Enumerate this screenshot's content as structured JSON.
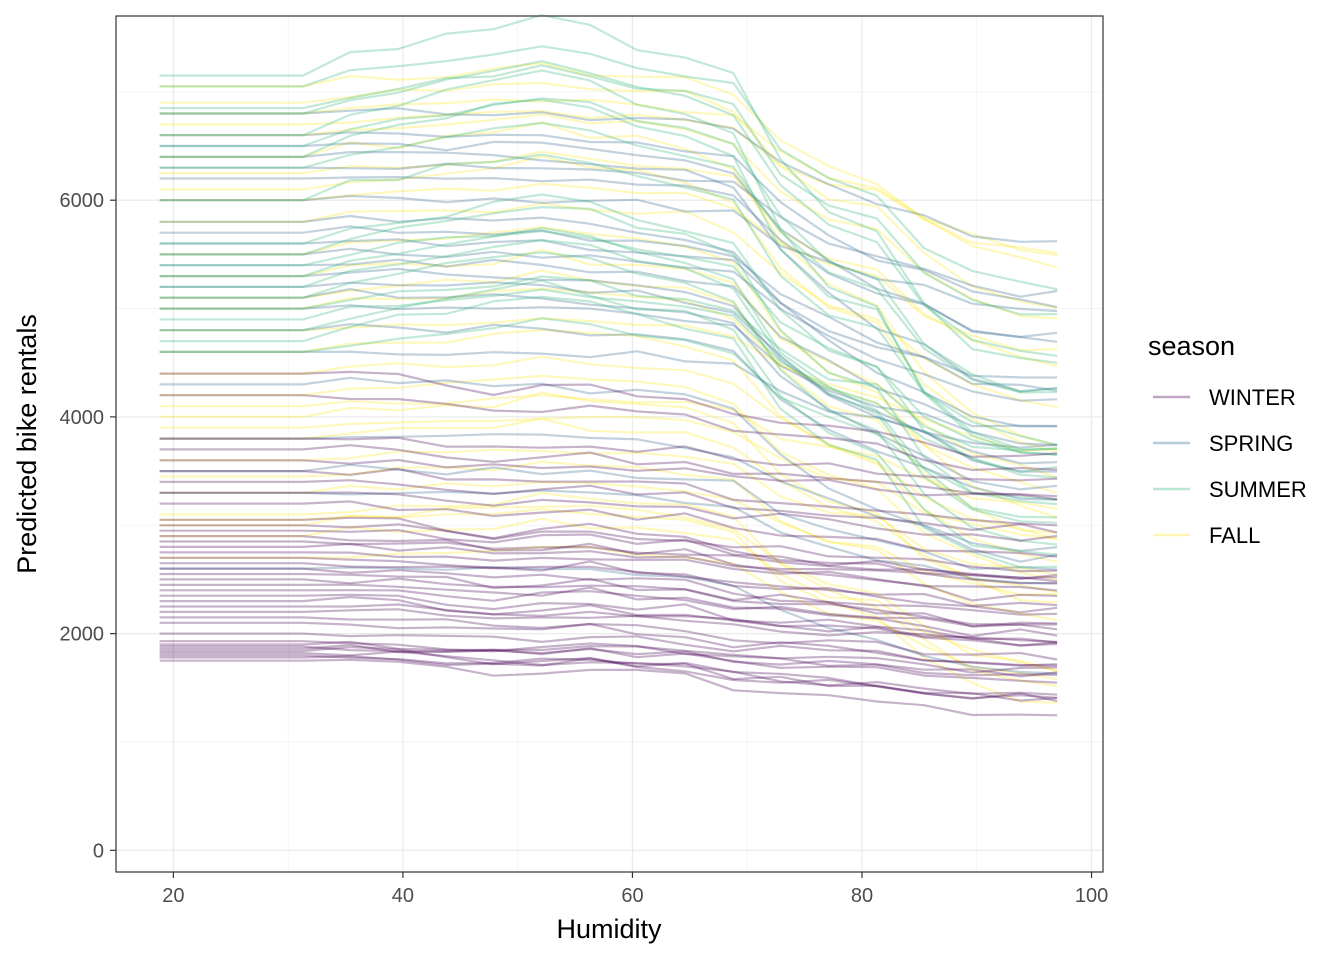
{
  "chart_data": {
    "type": "line",
    "xlabel": "Humidity",
    "ylabel": "Predicted bike rentals",
    "xlim": [
      15,
      101
    ],
    "ylim": [
      -200,
      7700
    ],
    "x_ticks": [
      20,
      40,
      60,
      80,
      100
    ],
    "y_ticks": [
      0,
      2000,
      4000,
      6000
    ],
    "x_tick_labels": [
      "20",
      "40",
      "60",
      "80",
      "100"
    ],
    "y_tick_labels": [
      "0",
      "2000",
      "4000",
      "6000"
    ],
    "grid": true,
    "x": [
      18.8,
      31.3,
      35.4,
      39.6,
      43.8,
      47.9,
      52.1,
      56.3,
      60.4,
      64.6,
      68.8,
      72.9,
      77.1,
      81.3,
      85.4,
      89.6,
      93.8,
      97.0
    ],
    "legend": {
      "title": "season",
      "position": "right",
      "entries": [
        "WINTER",
        "SPRING",
        "SUMMER",
        "FALL"
      ]
    },
    "series_colors": {
      "WINTER": "#440154",
      "SPRING": "#31688e",
      "SUMMER": "#35b779",
      "FALL": "#fde725"
    },
    "series": [
      {
        "name": "WINTER",
        "profile": "winter",
        "starts": [
          1750,
          1780,
          1800,
          1820,
          1840,
          1860,
          1880,
          1900,
          1930,
          2000,
          2100,
          2150,
          2200,
          2250,
          2300,
          2350,
          2400,
          2450,
          2500,
          2550,
          2600,
          2650,
          2700,
          2750,
          2800,
          2850,
          2900,
          2950,
          3000,
          3050,
          3200,
          3300,
          3400,
          3500,
          3600,
          3700,
          3800,
          4200,
          4400
        ]
      },
      {
        "name": "SPRING",
        "profile": "spring",
        "starts": [
          2600,
          3300,
          3500,
          3800,
          4300,
          4600,
          4800,
          5000,
          5100,
          5200,
          5300,
          5400,
          5500,
          5600,
          5700,
          5800,
          6000,
          6200,
          6300,
          6400,
          6500,
          6600,
          6800
        ]
      },
      {
        "name": "SUMMER",
        "profile": "summer",
        "starts": [
          4600,
          4700,
          4800,
          4900,
          5000,
          5100,
          5200,
          5300,
          5400,
          5500,
          5600,
          6000,
          6300,
          6400,
          6500,
          6600,
          6800,
          6850,
          7050,
          7150
        ]
      },
      {
        "name": "FALL",
        "profile": "fall",
        "starts": [
          2700,
          2900,
          3000,
          3050,
          3100,
          3300,
          3450,
          3600,
          3800,
          3900,
          4000,
          4100,
          4200,
          4400,
          4600,
          4800,
          5000,
          5100,
          5300,
          5500,
          5800,
          6000,
          6100,
          6250,
          6400,
          6600,
          6700,
          6800,
          6900,
          7050
        ]
      }
    ],
    "profiles": {
      "winter": [
        0,
        0,
        0,
        -20,
        -60,
        -110,
        -90,
        -60,
        -120,
        -130,
        -250,
        -280,
        -320,
        -350,
        -420,
        -480,
        -490,
        -500
      ],
      "spring": [
        0,
        0,
        30,
        20,
        0,
        10,
        0,
        -30,
        -40,
        -80,
        -150,
        -450,
        -650,
        -800,
        -900,
        -1050,
        -1100,
        -1100
      ],
      "summer": [
        0,
        0,
        100,
        150,
        200,
        250,
        300,
        250,
        150,
        100,
        0,
        -450,
        -700,
        -800,
        -1200,
        -1400,
        -1480,
        -1500
      ],
      "fall": [
        0,
        0,
        50,
        60,
        80,
        100,
        150,
        100,
        80,
        50,
        -50,
        -400,
        -600,
        -700,
        -1000,
        -1200,
        -1300,
        -1350
      ]
    }
  }
}
